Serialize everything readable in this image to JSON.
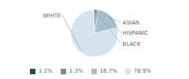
{
  "chart_data": {
    "type": "pie",
    "categories": [
      "WHITE",
      "HISPANIC",
      "ASIAN",
      "BLACK"
    ],
    "values": [
      78.9,
      18.7,
      1.3,
      1.1
    ],
    "value_labels": [
      "78.9%",
      "18.7%",
      "1.3%",
      "1.1%"
    ],
    "colors": [
      "#d6e4f0",
      "#a8bfcf",
      "#6b8fa8",
      "#2c4a5e"
    ],
    "legend": "bottom"
  }
}
